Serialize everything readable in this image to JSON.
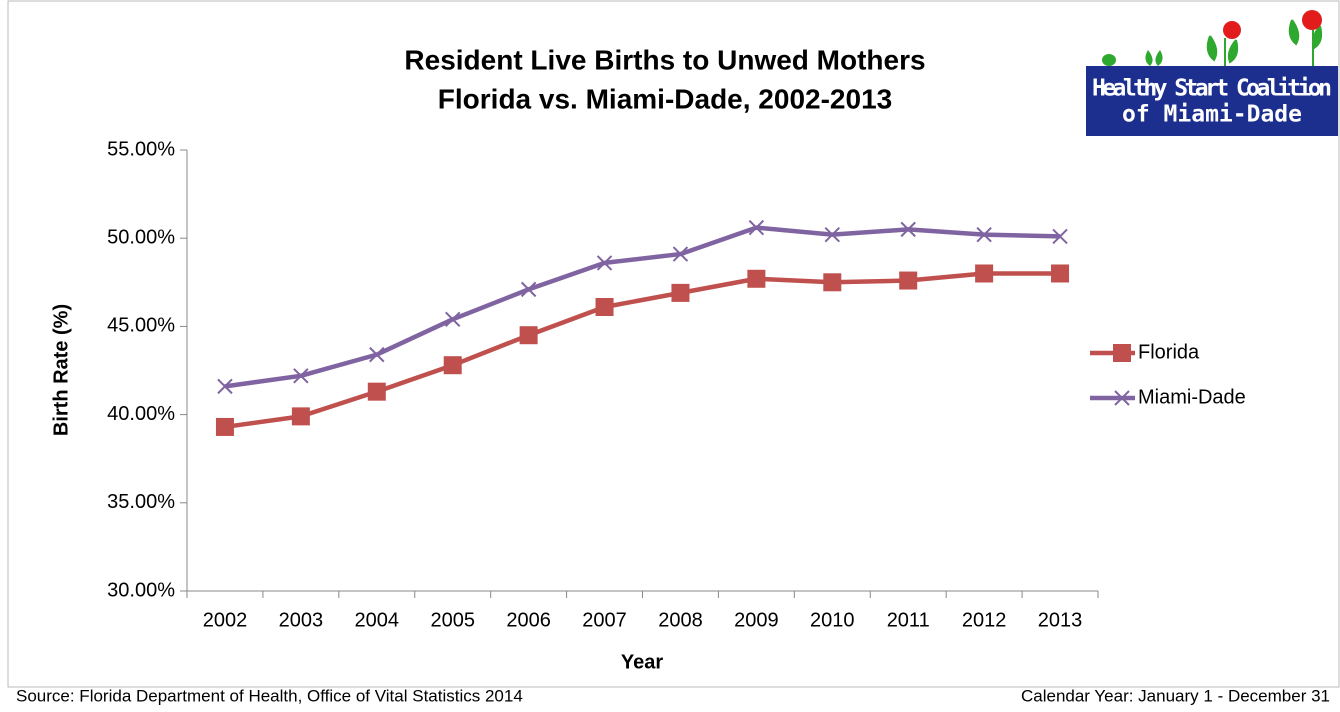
{
  "chart_data": {
    "type": "line",
    "title": [
      "Resident Live Births to Unwed Mothers",
      "Florida vs. Miami-Dade, 2002-2013"
    ],
    "x_label": "Year",
    "y_label": "Birth Rate (%)",
    "categories": [
      "2002",
      "2003",
      "2004",
      "2005",
      "2006",
      "2007",
      "2008",
      "2009",
      "2010",
      "2011",
      "2012",
      "2013"
    ],
    "series": [
      {
        "name": "Florida",
        "color": "#c0504d",
        "marker": "square",
        "values": [
          39.3,
          39.9,
          41.3,
          42.8,
          44.5,
          46.1,
          46.9,
          47.7,
          47.5,
          47.6,
          48.0,
          48.0
        ]
      },
      {
        "name": "Miami-Dade",
        "color": "#8064a2",
        "marker": "x",
        "values": [
          41.6,
          42.2,
          43.4,
          45.4,
          47.1,
          48.6,
          49.1,
          50.6,
          50.2,
          50.5,
          50.2,
          50.1
        ]
      }
    ],
    "ylim": [
      30,
      55
    ],
    "yticks": [
      {
        "value": 30,
        "label": "30.00%"
      },
      {
        "value": 35,
        "label": "35.00%"
      },
      {
        "value": 40,
        "label": "40.00%"
      },
      {
        "value": 45,
        "label": "45.00%"
      },
      {
        "value": 50,
        "label": "50.00%"
      },
      {
        "value": 55,
        "label": "55.00%"
      }
    ],
    "grid": false,
    "legend": "right"
  },
  "footer": {
    "source": "Source: Florida Department of Health, Office of Vital Statistics 2014",
    "period": "Calendar Year: January 1 - December 31"
  },
  "logo": {
    "lines": [
      "Healthy Start Coalition",
      "of Miami-Dade"
    ]
  }
}
